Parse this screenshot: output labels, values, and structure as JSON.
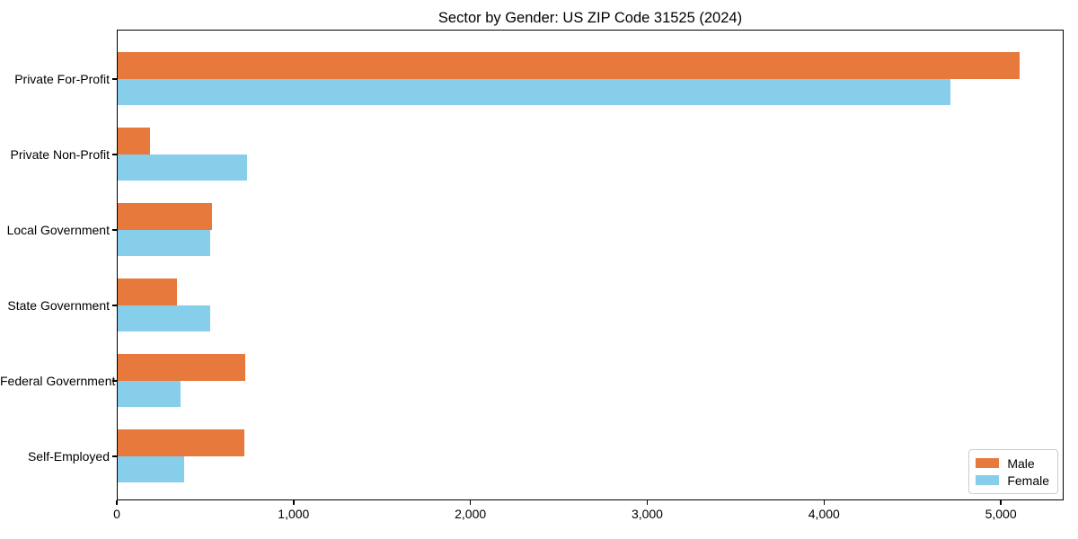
{
  "chart_data": {
    "type": "bar",
    "orientation": "horizontal",
    "title": "Sector by Gender: US ZIP Code 31525 (2024)",
    "categories": [
      "Private For-Profit",
      "Private Non-Profit",
      "Local Government",
      "State Government",
      "Federal Government",
      "Self-Employed"
    ],
    "series": [
      {
        "name": "Male",
        "color": "#E7793C",
        "values": [
          5100,
          182,
          534,
          333,
          720,
          714
        ]
      },
      {
        "name": "Female",
        "color": "#87CEEB",
        "values": [
          4712,
          731,
          523,
          522,
          357,
          374
        ]
      }
    ],
    "xlabel": "",
    "ylabel": "",
    "xlim": [
      0,
      5355
    ],
    "xticks": [
      0,
      1000,
      2000,
      3000,
      4000,
      5000
    ],
    "xtick_labels": [
      "0",
      "1,000",
      "2,000",
      "3,000",
      "4,000",
      "5,000"
    ],
    "grid": false,
    "legend": {
      "position": "lower right"
    }
  }
}
